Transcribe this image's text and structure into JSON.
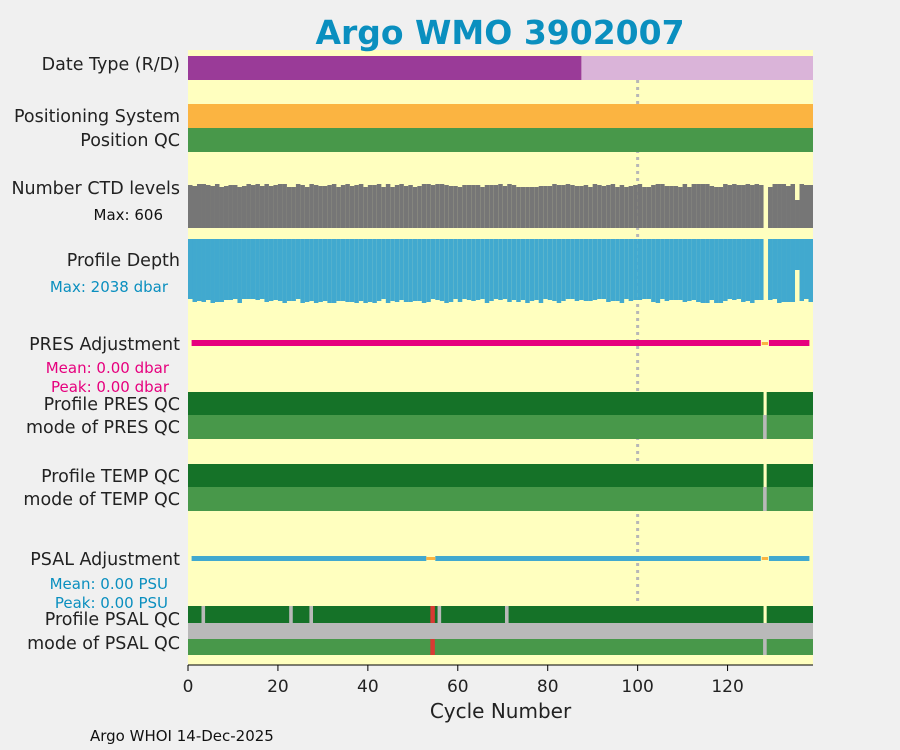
{
  "chart_data": {
    "type": "status-bar-chart",
    "title": "Argo WMO 3902007",
    "xlabel": "Cycle Number",
    "xlim": [
      0,
      139
    ],
    "xticks": [
      0,
      20,
      40,
      60,
      80,
      100,
      120
    ],
    "reference_line_x": 100,
    "footer": "Argo WHOI 14-Dec-2025",
    "colors": {
      "title": "#0a8fbf",
      "background": "#ffffbf",
      "realtime": "#9a3b98",
      "delayed": "#dab4d9",
      "positioning": "#fbb441",
      "qc_good": "#48984a",
      "qc_dark": "#157228",
      "qc_gray": "#b9b9b9",
      "qc_bad": "#d83a33",
      "ctd": "#767676",
      "depth": "#41a9cf",
      "pres_adj": "#e6007e",
      "psal_adj": "#41a9cf",
      "refline": "#b7b7b7"
    },
    "rows": {
      "date_type": {
        "label": "Date Type (R/D)",
        "realtime_until": 87.5
      },
      "positioning": {
        "label": "Positioning System"
      },
      "position_qc": {
        "label": "Position QC"
      },
      "ctd_levels": {
        "label": "Number CTD levels",
        "note": "Max: 606"
      },
      "profile_depth": {
        "label": "Profile Depth",
        "note": "Max: 2038 dbar"
      },
      "pres_adj": {
        "label": "PRES Adjustment",
        "mean": "Mean: 0.00 dbar",
        "peak": "Peak: 0.00 dbar"
      },
      "profile_pres_qc": {
        "label": "Profile PRES QC"
      },
      "mode_pres_qc": {
        "label": "mode of PRES QC"
      },
      "profile_temp_qc": {
        "label": "Profile TEMP QC"
      },
      "mode_temp_qc": {
        "label": "mode of TEMP QC"
      },
      "psal_adj": {
        "label": "PSAL Adjustment",
        "mean": "Mean: 0.00 PSU",
        "peak": "Peak: 0.00 PSU"
      },
      "profile_psal_qc": {
        "label": "Profile PSAL QC"
      },
      "mode_psal_qc": {
        "label": "mode of PSAL QC"
      }
    },
    "gap_cycles": [
      128
    ],
    "psal_profile_gaps": [
      3,
      22.5,
      27,
      55.5,
      70.5
    ],
    "psal_bad_cycle": 54,
    "pres_adj_gaps": [
      128
    ],
    "psal_adj_gaps": [
      54,
      128
    ]
  }
}
